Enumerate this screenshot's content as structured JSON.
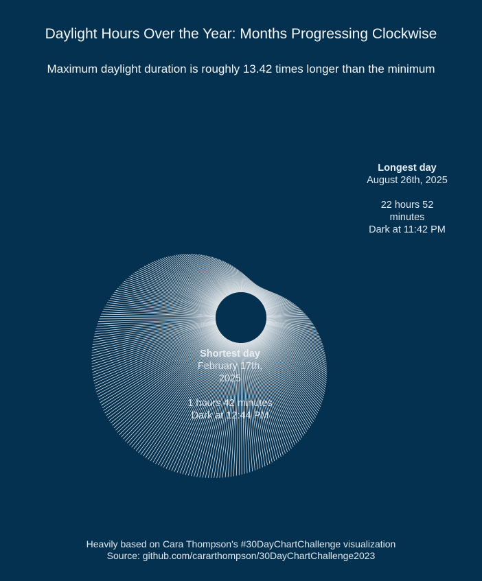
{
  "title": "Daylight Hours Over the Year: Months Progressing Clockwise",
  "subtitle": "Maximum daylight duration is roughly 13.42 times longer than the minimum",
  "annotations": {
    "longest": {
      "heading": "Longest day",
      "date_line1": "August 26th, 2025",
      "duration_line1": "22 hours 52",
      "duration_line2": "minutes",
      "dark": "Dark at 11:42 PM"
    },
    "shortest": {
      "heading": "Shortest day",
      "date_line1": "February 17th,",
      "date_line2": "2025",
      "duration": "1 hours 42 minutes",
      "dark": "Dark at 12:44 PM"
    }
  },
  "caption": {
    "line1": "Heavily based on Cara Thompson's #30DayChartChallenge visualization",
    "line2": "Source: github.com/cararthompson/30DayChartChallenge2023"
  },
  "colors": {
    "background": "#04314f",
    "lines": "#ffffff"
  },
  "chart_data": {
    "type": "radial-line",
    "year": 2025,
    "orientation": "months progressing clockwise",
    "unit": "daylight hours",
    "min": {
      "date": "2025-02-17",
      "hours": 1.7
    },
    "max": {
      "date": "2025-08-26",
      "hours": 22.87
    },
    "ratio_max_to_min": 13.42
  }
}
